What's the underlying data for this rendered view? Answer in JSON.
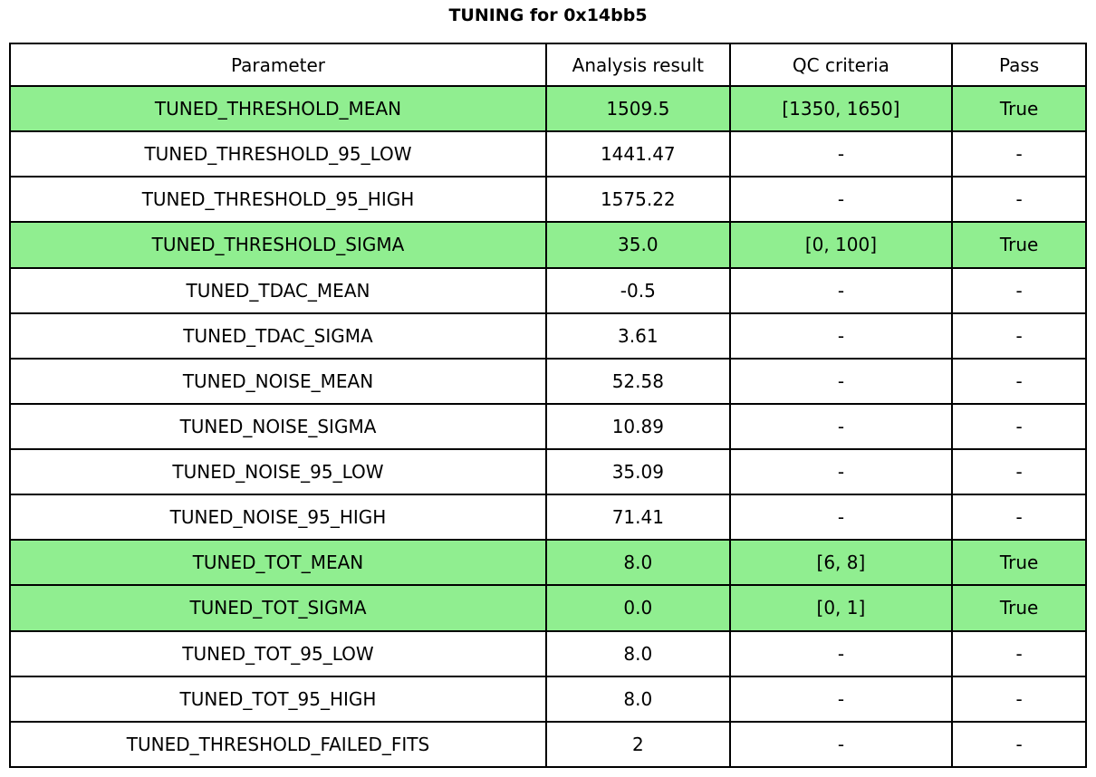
{
  "title": "TUNING for 0x14bb5",
  "colors": {
    "highlight_green": "#90EE90",
    "border": "#000000",
    "background": "#FFFFFF",
    "text": "#000000"
  },
  "table": {
    "columns": [
      "Parameter",
      "Analysis result",
      "QC criteria",
      "Pass"
    ],
    "rows": [
      {
        "parameter": "TUNED_THRESHOLD_MEAN",
        "result": "1509.5",
        "qc": "[1350, 1650]",
        "pass": "True",
        "highlighted": true
      },
      {
        "parameter": "TUNED_THRESHOLD_95_LOW",
        "result": "1441.47",
        "qc": "-",
        "pass": "-",
        "highlighted": false
      },
      {
        "parameter": "TUNED_THRESHOLD_95_HIGH",
        "result": "1575.22",
        "qc": "-",
        "pass": "-",
        "highlighted": false
      },
      {
        "parameter": "TUNED_THRESHOLD_SIGMA",
        "result": "35.0",
        "qc": "[0, 100]",
        "pass": "True",
        "highlighted": true
      },
      {
        "parameter": "TUNED_TDAC_MEAN",
        "result": "-0.5",
        "qc": "-",
        "pass": "-",
        "highlighted": false
      },
      {
        "parameter": "TUNED_TDAC_SIGMA",
        "result": "3.61",
        "qc": "-",
        "pass": "-",
        "highlighted": false
      },
      {
        "parameter": "TUNED_NOISE_MEAN",
        "result": "52.58",
        "qc": "-",
        "pass": "-",
        "highlighted": false
      },
      {
        "parameter": "TUNED_NOISE_SIGMA",
        "result": "10.89",
        "qc": "-",
        "pass": "-",
        "highlighted": false
      },
      {
        "parameter": "TUNED_NOISE_95_LOW",
        "result": "35.09",
        "qc": "-",
        "pass": "-",
        "highlighted": false
      },
      {
        "parameter": "TUNED_NOISE_95_HIGH",
        "result": "71.41",
        "qc": "-",
        "pass": "-",
        "highlighted": false
      },
      {
        "parameter": "TUNED_TOT_MEAN",
        "result": "8.0",
        "qc": "[6, 8]",
        "pass": "True",
        "highlighted": true
      },
      {
        "parameter": "TUNED_TOT_SIGMA",
        "result": "0.0",
        "qc": "[0, 1]",
        "pass": "True",
        "highlighted": true
      },
      {
        "parameter": "TUNED_TOT_95_LOW",
        "result": "8.0",
        "qc": "-",
        "pass": "-",
        "highlighted": false
      },
      {
        "parameter": "TUNED_TOT_95_HIGH",
        "result": "8.0",
        "qc": "-",
        "pass": "-",
        "highlighted": false
      },
      {
        "parameter": "TUNED_THRESHOLD_FAILED_FITS",
        "result": "2",
        "qc": "-",
        "pass": "-",
        "highlighted": false
      }
    ]
  },
  "chart_data": {
    "type": "table",
    "title": "TUNING for 0x14bb5",
    "columns": [
      "Parameter",
      "Analysis result",
      "QC criteria",
      "Pass"
    ],
    "rows": [
      [
        "TUNED_THRESHOLD_MEAN",
        1509.5,
        "[1350, 1650]",
        "True"
      ],
      [
        "TUNED_THRESHOLD_95_LOW",
        1441.47,
        "-",
        "-"
      ],
      [
        "TUNED_THRESHOLD_95_HIGH",
        1575.22,
        "-",
        "-"
      ],
      [
        "TUNED_THRESHOLD_SIGMA",
        35.0,
        "[0, 100]",
        "True"
      ],
      [
        "TUNED_TDAC_MEAN",
        -0.5,
        "-",
        "-"
      ],
      [
        "TUNED_TDAC_SIGMA",
        3.61,
        "-",
        "-"
      ],
      [
        "TUNED_NOISE_MEAN",
        52.58,
        "-",
        "-"
      ],
      [
        "TUNED_NOISE_SIGMA",
        10.89,
        "-",
        "-"
      ],
      [
        "TUNED_NOISE_95_LOW",
        35.09,
        "-",
        "-"
      ],
      [
        "TUNED_NOISE_95_HIGH",
        71.41,
        "-",
        "-"
      ],
      [
        "TUNED_TOT_MEAN",
        8.0,
        "[6, 8]",
        "True"
      ],
      [
        "TUNED_TOT_SIGMA",
        0.0,
        "[0, 1]",
        "True"
      ],
      [
        "TUNED_TOT_95_LOW",
        8.0,
        "-",
        "-"
      ],
      [
        "TUNED_TOT_95_HIGH",
        8.0,
        "-",
        "-"
      ],
      [
        "TUNED_THRESHOLD_FAILED_FITS",
        2,
        "-",
        "-"
      ]
    ],
    "highlighted_row_indices": [
      0,
      3,
      10,
      11
    ],
    "highlight_color": "#90EE90",
    "legend_position": "none",
    "grid": true
  }
}
